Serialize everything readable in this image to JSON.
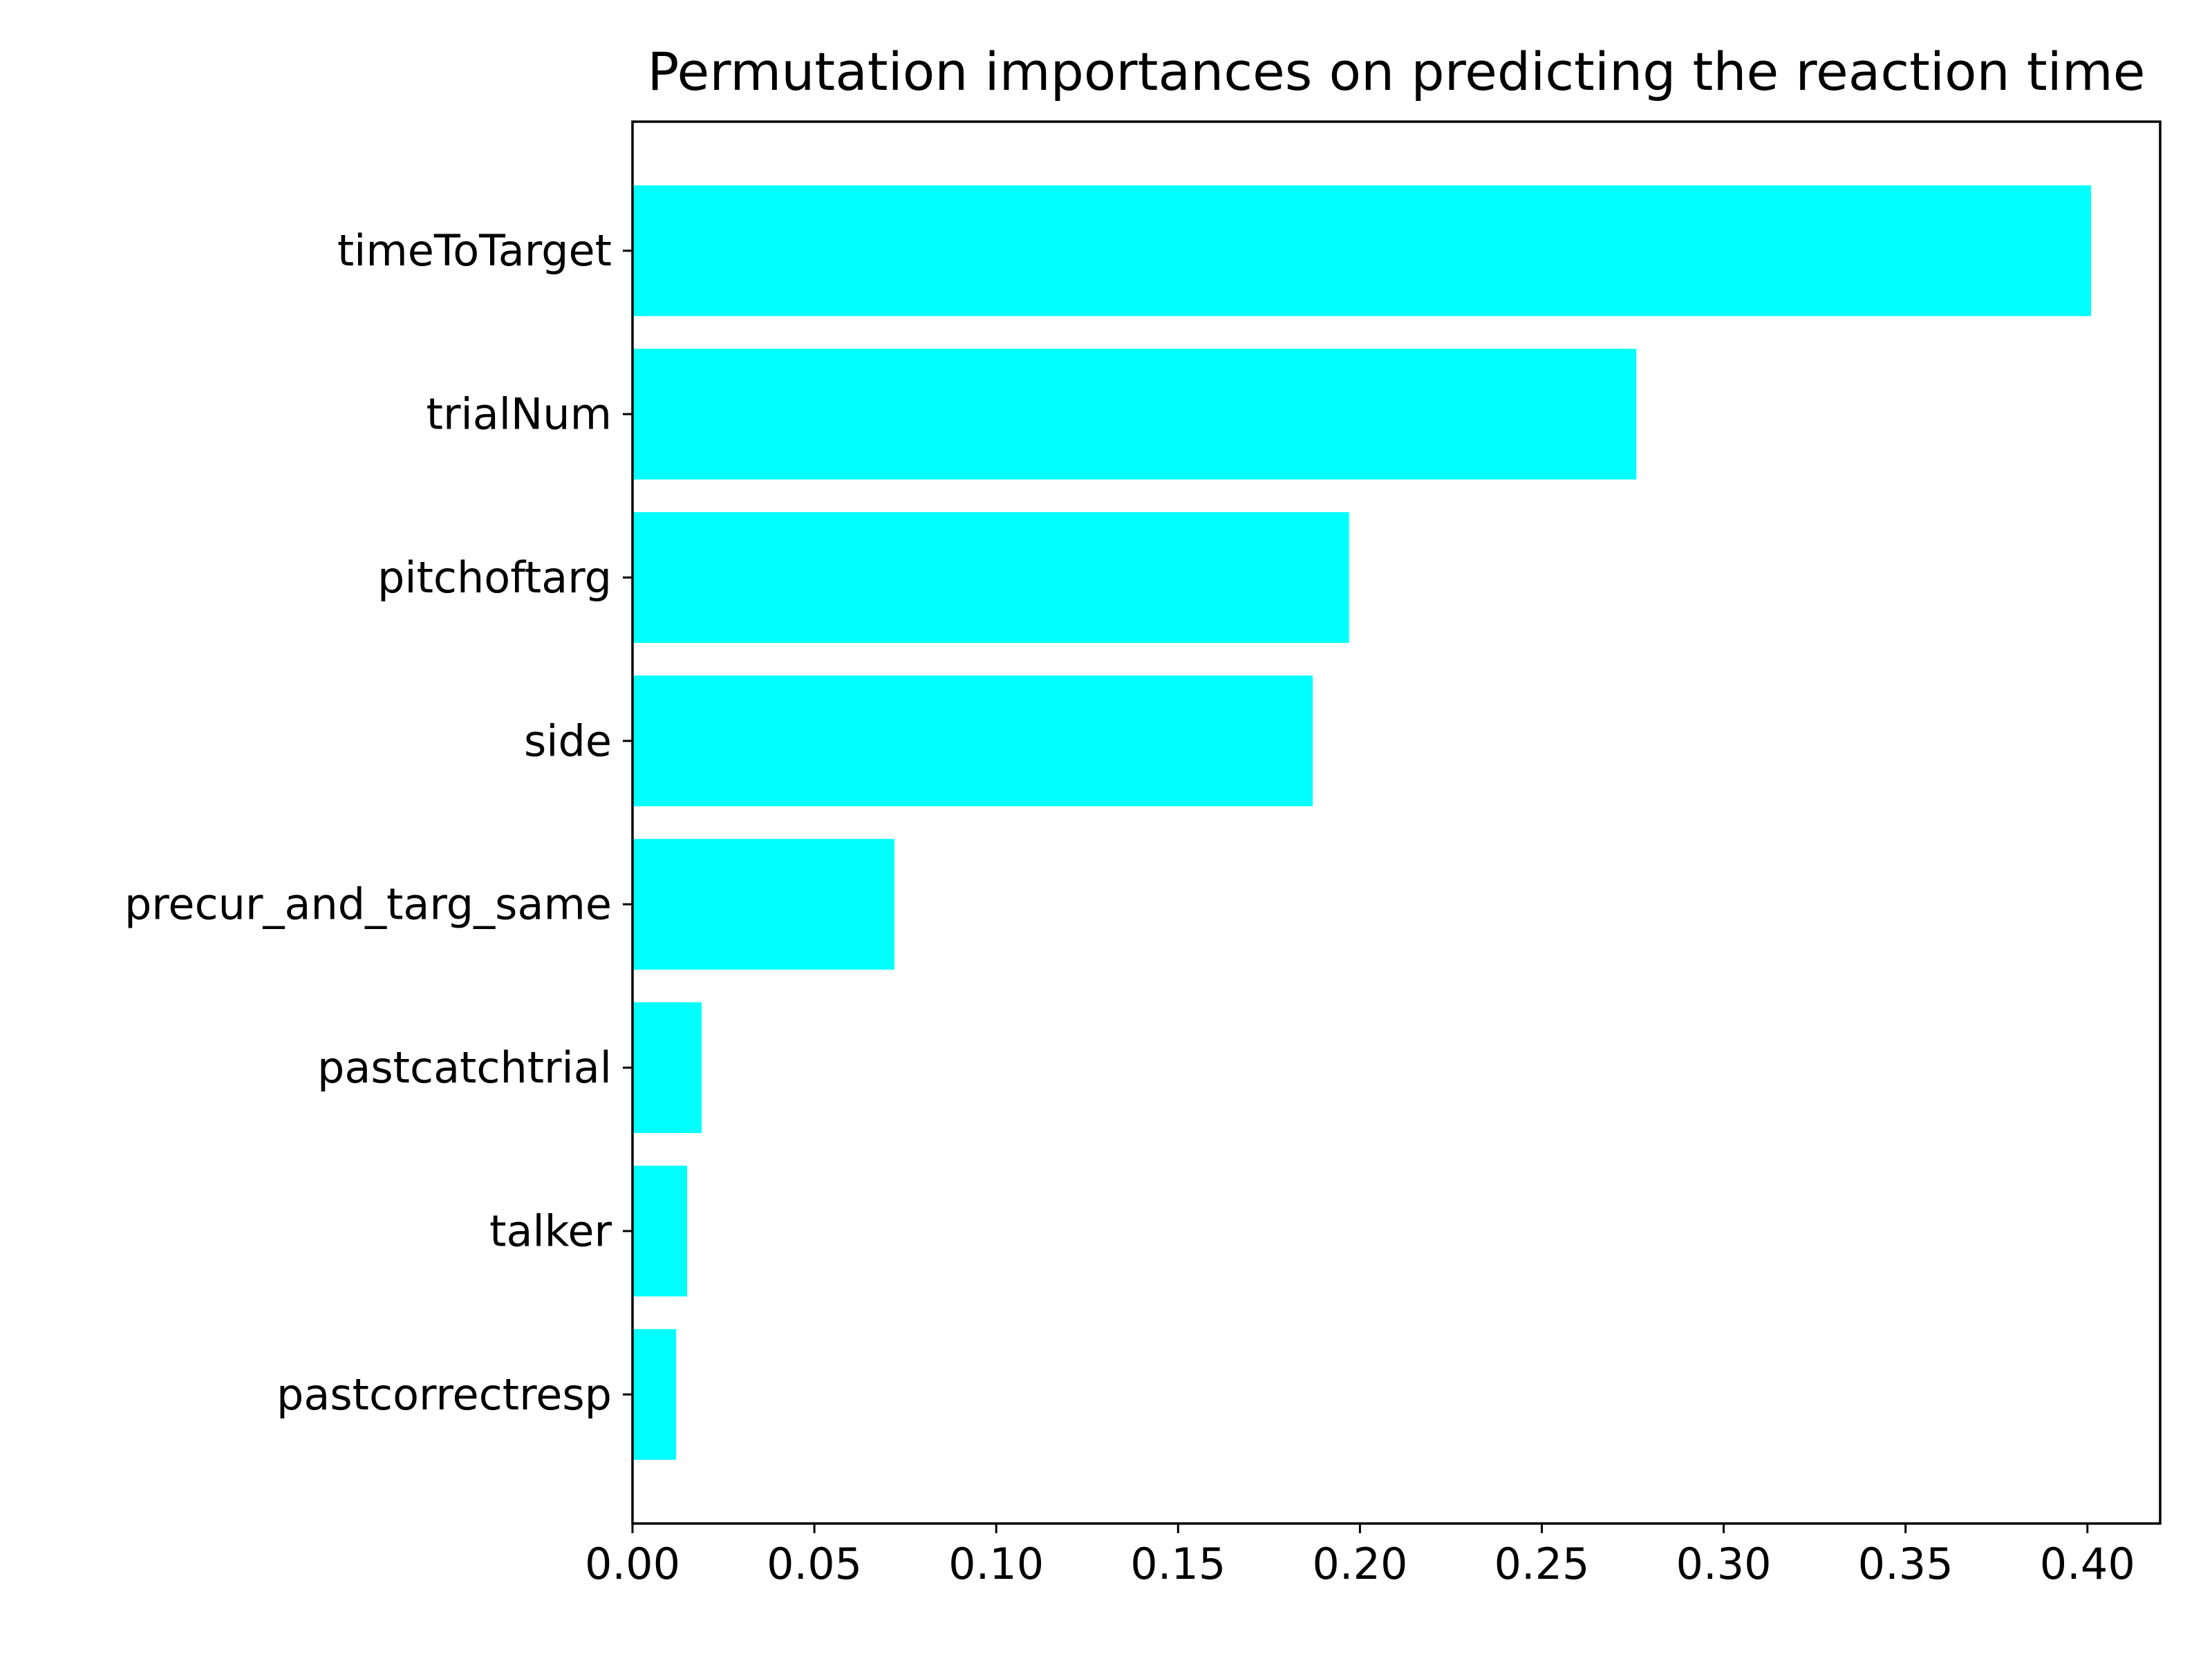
{
  "chart_data": {
    "type": "bar",
    "orientation": "horizontal",
    "title": "Permutation importances on predicting the reaction time",
    "xlabel": "",
    "ylabel": "",
    "xlim": [
      0,
      0.42
    ],
    "xticks": [
      "0.00",
      "0.05",
      "0.10",
      "0.15",
      "0.20",
      "0.25",
      "0.30",
      "0.35",
      "0.40"
    ],
    "grid": false,
    "bar_color": "#00ffff",
    "categories": [
      "timeToTarget",
      "trialNum",
      "pitchoftarg",
      "side",
      "precur_and_targ_same",
      "pastcatchtrial",
      "talker",
      "pastcorrectresp"
    ],
    "values": [
      0.401,
      0.276,
      0.197,
      0.187,
      0.072,
      0.019,
      0.015,
      0.012
    ]
  }
}
